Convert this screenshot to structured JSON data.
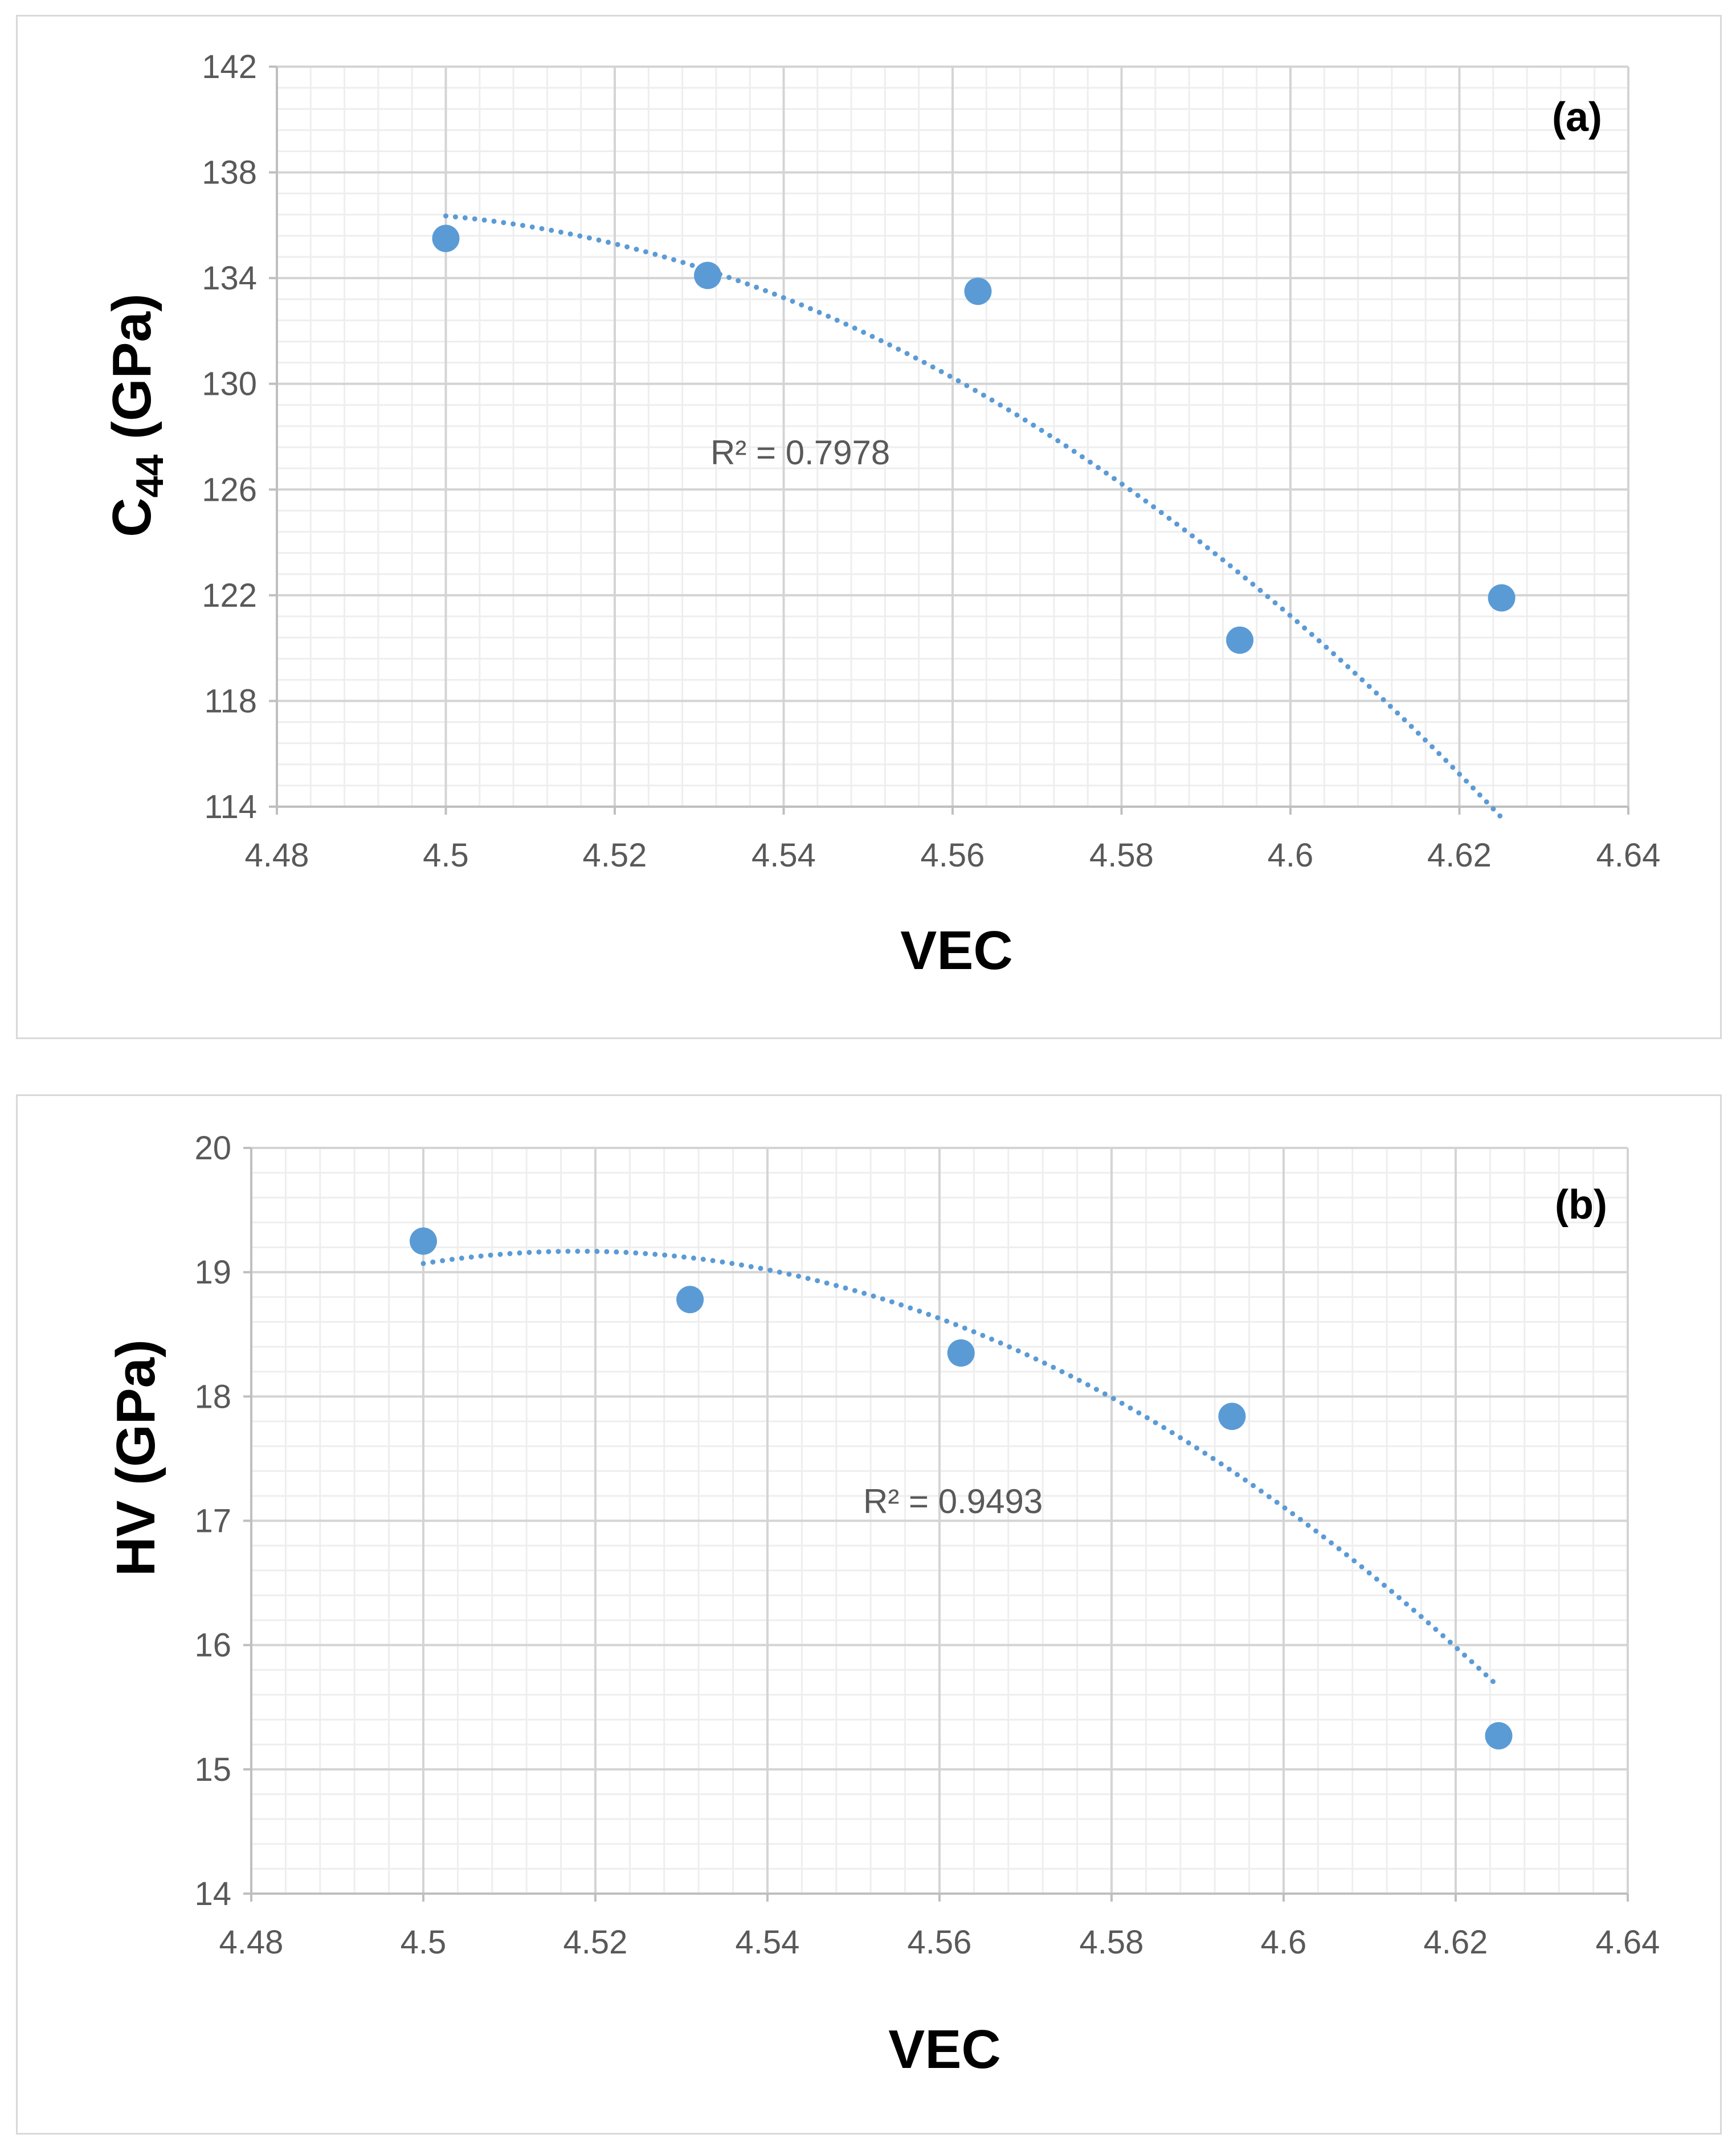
{
  "chart_data": [
    {
      "type": "scatter",
      "panel_label": "(a)",
      "xlabel": "VEC",
      "ylabel_main": "C",
      "ylabel_sub": "44",
      "ylabel_tail": " (GPa)",
      "xlim": [
        4.48,
        4.64
      ],
      "ylim": [
        114,
        142
      ],
      "xticks": [
        4.48,
        4.5,
        4.52,
        4.54,
        4.56,
        4.58,
        4.6,
        4.62,
        4.64
      ],
      "xtick_labels": [
        "4.48",
        "4.5",
        "4.52",
        "4.54",
        "4.56",
        "4.58",
        "4.6",
        "4.62",
        "4.64"
      ],
      "yticks": [
        114,
        118,
        122,
        126,
        130,
        134,
        138,
        142
      ],
      "ytick_labels": [
        "114",
        "118",
        "122",
        "126",
        "130",
        "134",
        "138",
        "142"
      ],
      "x_minor_step": 0.004,
      "y_minor_step": 0.8,
      "grid": true,
      "points": [
        {
          "x": 4.5,
          "y": 135.5
        },
        {
          "x": 4.531,
          "y": 134.1
        },
        {
          "x": 4.563,
          "y": 133.5
        },
        {
          "x": 4.594,
          "y": 120.3
        },
        {
          "x": 4.625,
          "y": 121.9
        }
      ],
      "trendline": {
        "type": "polynomial",
        "coeffs_about_4_5": [
          136.35,
          -28.0,
          -1233.0
        ],
        "x_range": [
          4.5,
          4.625
        ],
        "style": "dotted"
      },
      "r2_label": "R² = 0.7978",
      "marker_color": "#5b9bd5",
      "trend_color": "#5b9bd5"
    },
    {
      "type": "scatter",
      "panel_label": "(b)",
      "xlabel": "VEC",
      "ylabel": "HV (GPa)",
      "xlim": [
        4.48,
        4.64
      ],
      "ylim": [
        14,
        20
      ],
      "xticks": [
        4.48,
        4.5,
        4.52,
        4.54,
        4.56,
        4.58,
        4.6,
        4.62,
        4.64
      ],
      "xtick_labels": [
        "4.48",
        "4.5",
        "4.52",
        "4.54",
        "4.56",
        "4.58",
        "4.6",
        "4.62",
        "4.64"
      ],
      "yticks": [
        14,
        15,
        16,
        17,
        18,
        19,
        20
      ],
      "ytick_labels": [
        "14",
        "15",
        "16",
        "17",
        "18",
        "19",
        "20"
      ],
      "x_minor_step": 0.004,
      "y_minor_step": 0.2,
      "grid": true,
      "points": [
        {
          "x": 4.5,
          "y": 19.25
        },
        {
          "x": 4.531,
          "y": 18.78
        },
        {
          "x": 4.5625,
          "y": 18.35
        },
        {
          "x": 4.594,
          "y": 17.84
        },
        {
          "x": 4.625,
          "y": 15.27
        }
      ],
      "trendline": {
        "type": "polynomial",
        "coeffs_about_4_5": [
          19.07,
          11.0,
          -306.0
        ],
        "x_range": [
          4.5,
          4.625
        ],
        "style": "dotted"
      },
      "r2_label": "R² = 0.9493",
      "marker_color": "#5b9bd5",
      "trend_color": "#5b9bd5"
    }
  ]
}
